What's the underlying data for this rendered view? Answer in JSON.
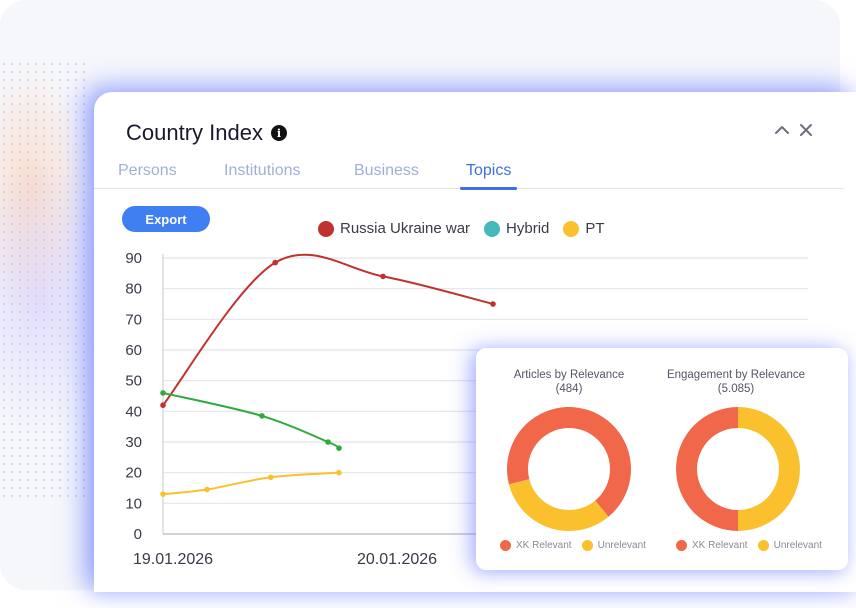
{
  "window": {
    "title": "Country Index",
    "info_icon_glyph": "i"
  },
  "tabs": [
    {
      "label": "Persons",
      "active": false
    },
    {
      "label": "Institutions",
      "active": false
    },
    {
      "label": "Business",
      "active": false
    },
    {
      "label": "Topics",
      "active": true
    }
  ],
  "toolbar": {
    "export_label": "Export"
  },
  "colors": {
    "accent": "#3f6fe6",
    "russia": "#c0322f",
    "hybrid": "#44b8bd",
    "pt": "#f9c12e",
    "green_line": "#2eaa3c",
    "xk_relevant": "#f0674a",
    "unrelevant": "#fbc02d"
  },
  "chart_data": {
    "type": "line",
    "x": [
      "19.01.2026",
      "20.01.2026"
    ],
    "x_tick_labels": [
      "19.01.2026",
      "20.01.2026"
    ],
    "yticks": [
      0,
      10,
      20,
      30,
      40,
      50,
      60,
      70,
      80,
      90
    ],
    "ylim": [
      0,
      90
    ],
    "legend": [
      "Russia Ukraine war",
      "Hybrid",
      "PT"
    ],
    "series": [
      {
        "name": "Russia Ukraine war",
        "color": "#c0322f",
        "points": [
          [
            0,
            42
          ],
          [
            0.51,
            88.5
          ],
          [
            1.0,
            84
          ],
          [
            1.5,
            75
          ]
        ]
      },
      {
        "name": "",
        "color": "#2eaa3c",
        "points": [
          [
            0,
            46
          ],
          [
            0.45,
            38.5
          ],
          [
            0.75,
            30
          ],
          [
            0.8,
            28
          ]
        ]
      },
      {
        "name": "PT",
        "color": "#f9c12e",
        "points": [
          [
            0,
            13
          ],
          [
            0.2,
            14.5
          ],
          [
            0.49,
            18.5
          ],
          [
            0.8,
            20
          ]
        ]
      }
    ]
  },
  "donuts": [
    {
      "title": "Articles by Relevance",
      "subtitle": "(484)",
      "slices": [
        {
          "label": "XK Relevant",
          "value": 0.68,
          "color": "#f0674a"
        },
        {
          "label": "Unrelevant",
          "value": 0.32,
          "color": "#fbc02d"
        }
      ],
      "legend": [
        "XK Relevant",
        "Unrelevant"
      ]
    },
    {
      "title": "Engagement by Relevance",
      "subtitle": "(5.085)",
      "slices": [
        {
          "label": "XK Relevant",
          "value": 0.5,
          "color": "#f0674a"
        },
        {
          "label": "Unrelevant",
          "value": 0.5,
          "color": "#fbc02d"
        }
      ],
      "legend": [
        "XK Relevant",
        "Unrelevant"
      ]
    }
  ]
}
